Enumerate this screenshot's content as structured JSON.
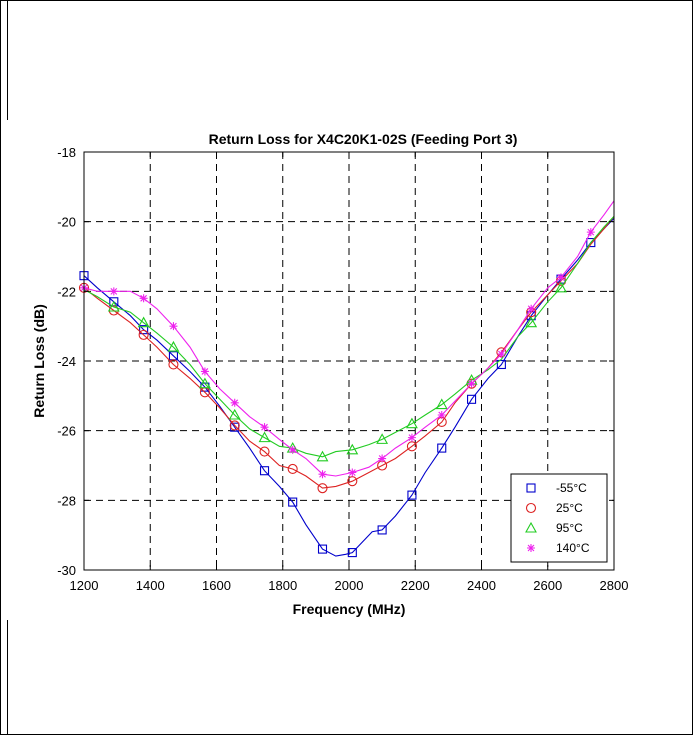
{
  "chart_data": {
    "type": "line",
    "title": "Return Loss for X4C20K1-02S (Feeding Port 3)",
    "xlabel": "Frequency (MHz)",
    "ylabel": "Return Loss (dB)",
    "xlim": [
      1200,
      2800
    ],
    "ylim": [
      -30,
      -18
    ],
    "xticks": [
      1200,
      1400,
      1600,
      1800,
      2000,
      2200,
      2400,
      2600,
      2800
    ],
    "yticks": [
      -30,
      -28,
      -26,
      -24,
      -22,
      -20,
      -18
    ],
    "xtick_labels": [
      "1200",
      "1400",
      "1600",
      "1800",
      "2000",
      "2200",
      "2400",
      "2600",
      "2800"
    ],
    "ytick_labels": [
      "-30",
      "-28",
      "-26",
      "-24",
      "-22",
      "-20",
      "-18"
    ],
    "grid": true,
    "legend_position": "bottom-right",
    "series": [
      {
        "name": "-55°C",
        "color": "#0000cc",
        "marker": "square",
        "x": [
          1200,
          1240,
          1290,
          1340,
          1380,
          1420,
          1470,
          1520,
          1565,
          1610,
          1655,
          1700,
          1745,
          1790,
          1830,
          1870,
          1920,
          1960,
          1990,
          2010,
          2040,
          2070,
          2100,
          2140,
          2190,
          2230,
          2280,
          2320,
          2370,
          2420,
          2460,
          2510,
          2550,
          2600,
          2640,
          2690,
          2730,
          2770,
          2800
        ],
        "y": [
          -21.55,
          -21.9,
          -22.3,
          -22.7,
          -23.1,
          -23.4,
          -23.85,
          -24.3,
          -24.75,
          -25.3,
          -25.9,
          -26.5,
          -27.15,
          -27.6,
          -28.05,
          -28.7,
          -29.4,
          -29.6,
          -29.55,
          -29.5,
          -29.2,
          -28.9,
          -28.85,
          -28.45,
          -27.85,
          -27.2,
          -26.5,
          -25.9,
          -25.1,
          -24.5,
          -24.1,
          -23.3,
          -22.7,
          -22.1,
          -21.65,
          -21.1,
          -20.6,
          -20.2,
          -19.9
        ],
        "marker_x": [
          1200,
          1290,
          1380,
          1470,
          1565,
          1655,
          1745,
          1830,
          1920,
          2010,
          2100,
          2190,
          2280,
          2370,
          2460,
          2550,
          2640,
          2730
        ],
        "marker_y": [
          -21.55,
          -22.3,
          -23.1,
          -23.85,
          -24.75,
          -25.9,
          -27.15,
          -28.05,
          -29.4,
          -29.5,
          -28.85,
          -27.85,
          -26.5,
          -25.1,
          -24.1,
          -22.7,
          -21.65,
          -20.6
        ]
      },
      {
        "name": "25°C",
        "color": "#dd2222",
        "marker": "circle",
        "x": [
          1200,
          1240,
          1290,
          1340,
          1380,
          1420,
          1470,
          1520,
          1565,
          1610,
          1655,
          1700,
          1745,
          1790,
          1830,
          1870,
          1920,
          1960,
          2010,
          2060,
          2100,
          2140,
          2190,
          2230,
          2280,
          2320,
          2370,
          2420,
          2460,
          2510,
          2550,
          2600,
          2640,
          2690,
          2730,
          2770,
          2800
        ],
        "y": [
          -21.9,
          -22.2,
          -22.55,
          -22.9,
          -23.25,
          -23.6,
          -24.1,
          -24.5,
          -24.9,
          -25.35,
          -25.85,
          -26.3,
          -26.6,
          -27.0,
          -27.1,
          -27.3,
          -27.65,
          -27.6,
          -27.45,
          -27.2,
          -27.0,
          -26.8,
          -26.45,
          -26.15,
          -25.75,
          -25.2,
          -24.65,
          -24.2,
          -23.75,
          -23.1,
          -22.6,
          -22.1,
          -21.7,
          -21.2,
          -20.65,
          -20.2,
          -19.85
        ],
        "marker_x": [
          1200,
          1290,
          1380,
          1470,
          1565,
          1655,
          1745,
          1830,
          1920,
          2010,
          2100,
          2190,
          2280,
          2370,
          2460,
          2550,
          2640
        ],
        "marker_y": [
          -21.9,
          -22.55,
          -23.25,
          -24.1,
          -24.9,
          -25.85,
          -26.6,
          -27.1,
          -27.65,
          -27.45,
          -27.0,
          -26.45,
          -25.75,
          -24.65,
          -23.75,
          -22.6,
          -21.7
        ]
      },
      {
        "name": "95°C",
        "color": "#22cc22",
        "marker": "triangle",
        "x": [
          1200,
          1240,
          1290,
          1340,
          1380,
          1420,
          1470,
          1520,
          1565,
          1610,
          1655,
          1700,
          1745,
          1790,
          1830,
          1870,
          1920,
          1960,
          2010,
          2060,
          2100,
          2140,
          2190,
          2230,
          2280,
          2320,
          2370,
          2420,
          2460,
          2510,
          2550,
          2600,
          2640,
          2690,
          2730,
          2770,
          2800
        ],
        "y": [
          -21.95,
          -22.15,
          -22.45,
          -22.6,
          -22.9,
          -23.2,
          -23.6,
          -24.1,
          -24.65,
          -25.1,
          -25.55,
          -25.95,
          -26.2,
          -26.45,
          -26.5,
          -26.65,
          -26.75,
          -26.6,
          -26.55,
          -26.4,
          -26.25,
          -26.05,
          -25.8,
          -25.55,
          -25.25,
          -24.95,
          -24.55,
          -24.25,
          -23.95,
          -23.3,
          -22.9,
          -22.3,
          -21.9,
          -21.2,
          -20.6,
          -20.15,
          -19.85
        ],
        "marker_x": [
          1290,
          1380,
          1470,
          1565,
          1655,
          1745,
          1830,
          1920,
          2010,
          2100,
          2190,
          2280,
          2370,
          2550,
          2640
        ],
        "marker_y": [
          -22.45,
          -22.9,
          -23.6,
          -24.65,
          -25.55,
          -26.2,
          -26.5,
          -26.75,
          -26.55,
          -26.25,
          -25.8,
          -25.25,
          -24.55,
          -22.9,
          -21.9
        ]
      },
      {
        "name": "140°C",
        "color": "#ee22ee",
        "marker": "star",
        "x": [
          1200,
          1240,
          1290,
          1340,
          1380,
          1420,
          1470,
          1520,
          1565,
          1610,
          1655,
          1700,
          1745,
          1790,
          1830,
          1870,
          1920,
          1960,
          2010,
          2060,
          2100,
          2140,
          2190,
          2230,
          2280,
          2320,
          2370,
          2420,
          2460,
          2510,
          2550,
          2600,
          2640,
          2690,
          2730,
          2770,
          2800
        ],
        "y": [
          -21.9,
          -22.0,
          -22.0,
          -22.0,
          -22.2,
          -22.5,
          -23.0,
          -23.6,
          -24.3,
          -24.8,
          -25.2,
          -25.6,
          -25.9,
          -26.25,
          -26.55,
          -26.8,
          -27.25,
          -27.3,
          -27.2,
          -27.05,
          -26.8,
          -26.5,
          -26.2,
          -25.9,
          -25.55,
          -25.15,
          -24.65,
          -24.2,
          -23.8,
          -23.1,
          -22.5,
          -21.9,
          -21.6,
          -21.0,
          -20.3,
          -19.8,
          -19.4
        ],
        "marker_x": [
          1200,
          1290,
          1380,
          1470,
          1565,
          1655,
          1745,
          1830,
          1920,
          2010,
          2100,
          2190,
          2280,
          2370,
          2460,
          2550,
          2640,
          2730
        ],
        "marker_y": [
          -21.9,
          -22.0,
          -22.2,
          -23.0,
          -24.3,
          -25.2,
          -25.9,
          -26.55,
          -27.25,
          -27.2,
          -26.8,
          -26.2,
          -25.55,
          -24.65,
          -23.8,
          -22.5,
          -21.6,
          -20.3
        ]
      }
    ]
  }
}
